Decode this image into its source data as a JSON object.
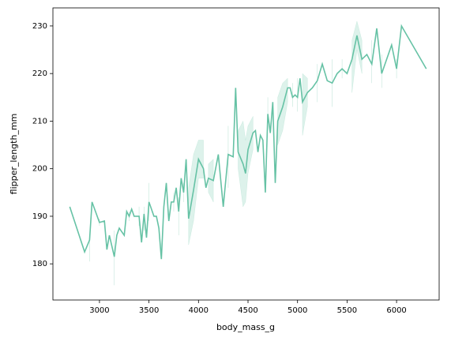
{
  "chart_data": {
    "type": "line",
    "xlabel": "body_mass_g",
    "ylabel": "flipper_length_mm",
    "color": "#66c2a5",
    "xlim": [
      2530,
      6430
    ],
    "ylim": [
      172.4,
      233.8
    ],
    "xticks": [
      3000,
      3500,
      4000,
      4500,
      5000,
      5500,
      6000
    ],
    "yticks": [
      180,
      190,
      200,
      210,
      220,
      230
    ],
    "x": [
      2700,
      2850,
      2900,
      2925,
      3000,
      3050,
      3075,
      3100,
      3150,
      3175,
      3200,
      3250,
      3275,
      3300,
      3325,
      3350,
      3400,
      3425,
      3450,
      3475,
      3500,
      3550,
      3575,
      3600,
      3625,
      3650,
      3675,
      3700,
      3725,
      3750,
      3775,
      3800,
      3825,
      3850,
      3875,
      3900,
      3950,
      4000,
      4050,
      4075,
      4100,
      4150,
      4200,
      4250,
      4300,
      4350,
      4375,
      4400,
      4450,
      4475,
      4500,
      4550,
      4575,
      4600,
      4625,
      4650,
      4675,
      4700,
      4725,
      4750,
      4775,
      4800,
      4850,
      4900,
      4925,
      4950,
      4975,
      5000,
      5025,
      5050,
      5100,
      5150,
      5200,
      5250,
      5300,
      5350,
      5400,
      5450,
      5500,
      5550,
      5600,
      5650,
      5700,
      5750,
      5800,
      5850,
      5950,
      6000,
      6050,
      6300
    ],
    "values": [
      192,
      182.5,
      185,
      193,
      188.7,
      189,
      183,
      186,
      181.5,
      186,
      187.5,
      186,
      191,
      190,
      191.5,
      190,
      190,
      184.5,
      190.5,
      185.5,
      193,
      190,
      190,
      187.5,
      181,
      192,
      197,
      189,
      193,
      193,
      196,
      191,
      198,
      195,
      202,
      189.5,
      195.5,
      202,
      200,
      196,
      198,
      197.5,
      203,
      192,
      203,
      202.5,
      217,
      203.5,
      201,
      199,
      204,
      207.5,
      208,
      203.5,
      207,
      206,
      195,
      211.5,
      207.5,
      214,
      197,
      210,
      213,
      217,
      217,
      215,
      215.5,
      215,
      219,
      214,
      216,
      217,
      218.5,
      222,
      218.5,
      218,
      220,
      221,
      220,
      223,
      228,
      223,
      224,
      222,
      229.5,
      220,
      226,
      221,
      230,
      221
    ],
    "ci_lower": [
      null,
      null,
      180.5,
      null,
      188,
      null,
      null,
      null,
      175.5,
      null,
      null,
      null,
      null,
      189,
      null,
      null,
      188,
      null,
      187,
      null,
      189,
      null,
      null,
      null,
      null,
      null,
      null,
      null,
      null,
      191,
      null,
      186,
      null,
      193,
      null,
      184,
      189,
      198,
      198,
      null,
      195,
      193,
      null,
      null,
      196,
      null,
      null,
      200,
      192,
      193,
      199,
      204,
      null,
      null,
      null,
      null,
      null,
      208,
      null,
      null,
      null,
      205,
      208,
      214,
      null,
      213,
      null,
      212,
      null,
      207,
      213,
      null,
      214,
      null,
      null,
      213,
      null,
      219,
      null,
      216,
      225,
      220,
      null,
      218,
      null,
      217,
      null,
      219,
      null,
      null
    ],
    "ci_upper": [
      null,
      null,
      185.5,
      null,
      189.5,
      null,
      null,
      null,
      187,
      null,
      null,
      null,
      null,
      191,
      null,
      null,
      192,
      null,
      192,
      null,
      197,
      null,
      null,
      null,
      null,
      null,
      null,
      null,
      null,
      195,
      null,
      194,
      null,
      197,
      null,
      196,
      203,
      206,
      206,
      null,
      201,
      202,
      null,
      null,
      209,
      null,
      null,
      208,
      210,
      206,
      209,
      211,
      null,
      null,
      null,
      null,
      null,
      215,
      null,
      null,
      null,
      215,
      218,
      219,
      null,
      218,
      null,
      219,
      null,
      220,
      219,
      null,
      222,
      null,
      null,
      223,
      null,
      223,
      null,
      227,
      231,
      227,
      null,
      227,
      null,
      224,
      null,
      223,
      null,
      null
    ]
  }
}
